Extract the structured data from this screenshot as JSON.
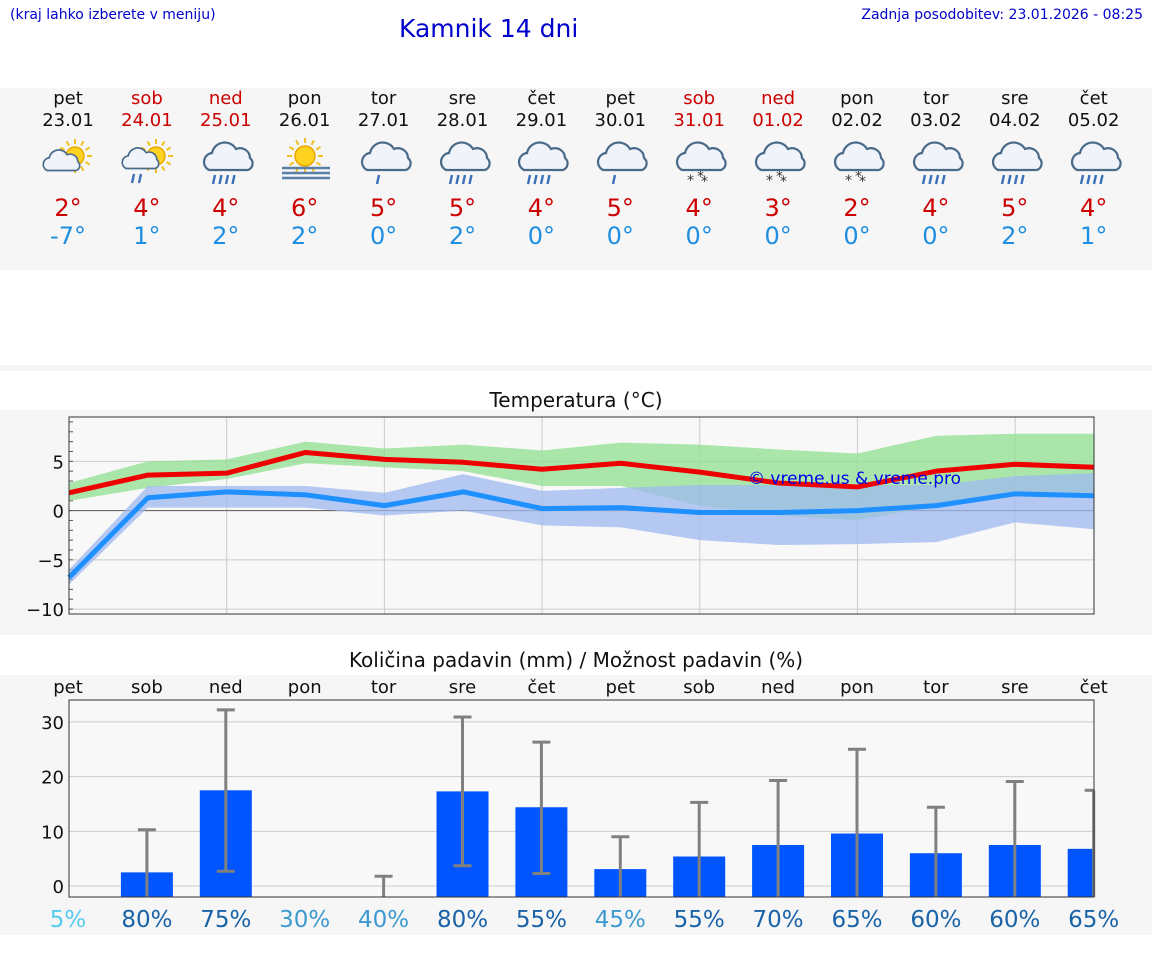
{
  "header": {
    "hint": "(kraj lahko izberete v meniju)",
    "title": "Kamnik 14 dni",
    "updated": "Zadnja posodobitev: 23.01.2026 - 08:25"
  },
  "days": [
    {
      "name": "pet",
      "date": "23.01",
      "weekend": false,
      "icon": "partly-cloudy-icon",
      "tmax": "2°",
      "tmin": "-7°"
    },
    {
      "name": "sob",
      "date": "24.01",
      "weekend": true,
      "icon": "partly-cloudy-rain-icon",
      "tmax": "4°",
      "tmin": "1°"
    },
    {
      "name": "ned",
      "date": "25.01",
      "weekend": true,
      "icon": "rain-icon",
      "tmax": "4°",
      "tmin": "2°"
    },
    {
      "name": "pon",
      "date": "26.01",
      "weekend": false,
      "icon": "sun-fog-icon",
      "tmax": "6°",
      "tmin": "2°"
    },
    {
      "name": "tor",
      "date": "27.01",
      "weekend": false,
      "icon": "light-rain-icon",
      "tmax": "5°",
      "tmin": "0°"
    },
    {
      "name": "sre",
      "date": "28.01",
      "weekend": false,
      "icon": "rain-icon",
      "tmax": "5°",
      "tmin": "2°"
    },
    {
      "name": "čet",
      "date": "29.01",
      "weekend": false,
      "icon": "rain-icon",
      "tmax": "4°",
      "tmin": "0°"
    },
    {
      "name": "pet",
      "date": "30.01",
      "weekend": false,
      "icon": "light-rain-icon",
      "tmax": "5°",
      "tmin": "0°"
    },
    {
      "name": "sob",
      "date": "31.01",
      "weekend": true,
      "icon": "snow-icon",
      "tmax": "4°",
      "tmin": "0°"
    },
    {
      "name": "ned",
      "date": "01.02",
      "weekend": true,
      "icon": "snow-icon",
      "tmax": "3°",
      "tmin": "0°"
    },
    {
      "name": "pon",
      "date": "02.02",
      "weekend": false,
      "icon": "snow-icon",
      "tmax": "2°",
      "tmin": "0°"
    },
    {
      "name": "tor",
      "date": "03.02",
      "weekend": false,
      "icon": "rain-icon",
      "tmax": "4°",
      "tmin": "0°"
    },
    {
      "name": "sre",
      "date": "04.02",
      "weekend": false,
      "icon": "rain-icon",
      "tmax": "5°",
      "tmin": "2°"
    },
    {
      "name": "čet",
      "date": "05.02",
      "weekend": false,
      "icon": "rain-icon",
      "tmax": "4°",
      "tmin": "1°"
    }
  ],
  "colors": {
    "max_line": "#ee0000",
    "min_line": "#1e90ff",
    "max_band": "#90e090",
    "min_band": "#9db8f0",
    "bar": "#0055ff",
    "error_bar": "#808080",
    "watermark": "#0000ee"
  },
  "chart_data": [
    {
      "type": "line",
      "title": "Temperatura (°C)",
      "watermark": "© vreme.us & vreme.pro",
      "x": [
        0,
        1,
        2,
        3,
        4,
        5,
        6,
        7,
        8,
        9,
        10,
        11,
        12,
        13
      ],
      "ylim": [
        -10.5,
        9.5
      ],
      "yticks": [
        -10,
        -5,
        0,
        5
      ],
      "ytick_labels": [
        "−10",
        "−5",
        "0",
        "5"
      ],
      "series": [
        {
          "name": "max",
          "values": [
            1.8,
            3.6,
            3.8,
            5.9,
            5.2,
            4.9,
            4.2,
            4.8,
            3.9,
            2.8,
            2.4,
            4.0,
            4.7,
            4.4
          ]
        },
        {
          "name": "min",
          "values": [
            -6.8,
            1.3,
            1.9,
            1.6,
            0.5,
            1.9,
            0.2,
            0.3,
            -0.2,
            -0.2,
            0.0,
            0.5,
            1.7,
            1.5
          ]
        },
        {
          "name": "max_range",
          "low": [
            1.0,
            2.3,
            3.2,
            4.8,
            4.4,
            4.0,
            2.5,
            2.5,
            0.5,
            -0.5,
            -1.0,
            0.5,
            1.5,
            1.5
          ],
          "high": [
            2.8,
            5.0,
            5.2,
            7.0,
            6.3,
            6.7,
            6.1,
            6.9,
            6.7,
            6.2,
            5.8,
            7.6,
            7.8,
            7.8
          ]
        },
        {
          "name": "min_range",
          "low": [
            -7.5,
            0.3,
            0.3,
            0.3,
            -0.5,
            0.0,
            -1.5,
            -1.7,
            -3.0,
            -3.5,
            -3.4,
            -3.2,
            -1.2,
            -1.9
          ],
          "high": [
            -6.0,
            2.5,
            2.5,
            2.5,
            1.8,
            3.7,
            2.0,
            2.3,
            2.6,
            2.6,
            2.6,
            2.6,
            3.5,
            3.8
          ]
        }
      ]
    },
    {
      "type": "bar",
      "title": "Količina padavin (mm) / Možnost padavin (%)",
      "categories": [
        "pet",
        "sob",
        "ned",
        "pon",
        "tor",
        "sre",
        "čet",
        "pet",
        "sob",
        "ned",
        "pon",
        "tor",
        "sre",
        "čet"
      ],
      "ylim": [
        -2,
        34
      ],
      "yticks": [
        0,
        10,
        20,
        30
      ],
      "ytick_labels": [
        "0",
        "10",
        "20",
        "30"
      ],
      "values": [
        0,
        2.5,
        17.5,
        0,
        0,
        17.3,
        14.4,
        3.1,
        5.4,
        7.5,
        9.6,
        6.0,
        7.5,
        6.8
      ],
      "err_high": [
        0,
        10.3,
        32.2,
        0,
        1.8,
        30.9,
        26.3,
        9.0,
        15.3,
        19.3,
        25.0,
        14.4,
        19.1,
        17.5
      ],
      "err_low": [
        0,
        0,
        2.7,
        0,
        0,
        3.7,
        2.3,
        0,
        0,
        0,
        0,
        0,
        0,
        0
      ],
      "probabilities": [
        "5%",
        "80%",
        "75%",
        "30%",
        "40%",
        "80%",
        "55%",
        "45%",
        "55%",
        "70%",
        "65%",
        "60%",
        "60%",
        "65%"
      ],
      "probability_colors": [
        "#55ccee",
        "#1a63a8",
        "#1a63a8",
        "#3d9ad0",
        "#3d9ad0",
        "#1a63a8",
        "#1a63a8",
        "#3d9ad0",
        "#1a63a8",
        "#1a63a8",
        "#1a63a8",
        "#1a63a8",
        "#1a63a8",
        "#1a63a8"
      ]
    }
  ]
}
